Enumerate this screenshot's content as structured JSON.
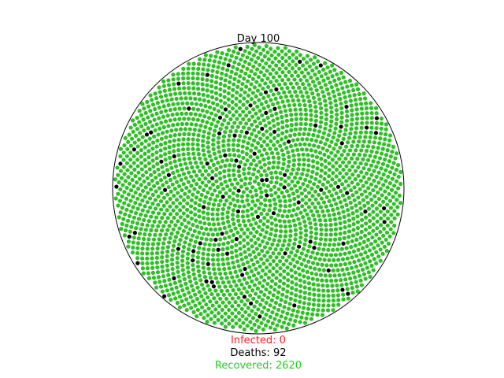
{
  "chart_data": {
    "type": "scatter",
    "title": "Day 100",
    "day": 100,
    "layout": "sunflower",
    "total_points": 2712,
    "counts": {
      "infected": 0,
      "deaths": 92,
      "recovered": 2620
    },
    "legend": {
      "infected": "Infected: 0",
      "deaths": "Deaths: 92",
      "recovered": "Recovered: 2620"
    },
    "colors": {
      "susceptible": "#d8d0d8",
      "infected": "#e83030",
      "dead": "#000000",
      "recovered": "#2fbf26",
      "infected_text": "#ff2020",
      "recovered_text": "#1fd01f",
      "boundary": "#000000"
    }
  }
}
